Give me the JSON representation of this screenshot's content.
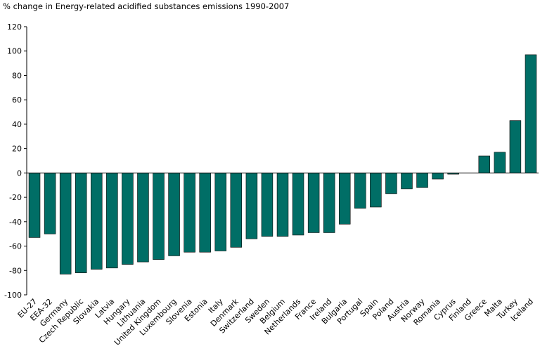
{
  "chart_data": {
    "type": "bar",
    "title": "% change in Energy-related acidified substances emissions 1990-2007",
    "xlabel": "",
    "ylabel": "",
    "ylim": [
      -100,
      120
    ],
    "yticks": [
      120,
      100,
      80,
      60,
      40,
      20,
      0,
      -20,
      -40,
      -60,
      -80,
      -100
    ],
    "grid": false,
    "bar_color": "#006e66",
    "categories": [
      "EU-27",
      "EEA-32",
      "Germany",
      "Czech Republic",
      "Slovakia",
      "Latvia",
      "Hungary",
      "Lithuania",
      "United Kingdom",
      "Luxembourg",
      "Slovenia",
      "Estonia",
      "Italy",
      "Denmark",
      "Switzerland",
      "Sweden",
      "Belgium",
      "Netherlands",
      "France",
      "Ireland",
      "Bulgaria",
      "Portugal",
      "Spain",
      "Poland",
      "Austria",
      "Norway",
      "Romania",
      "Cyprus",
      "Finland",
      "Greece",
      "Malta",
      "Turkey",
      "Iceland"
    ],
    "values": [
      -53,
      -50,
      -83,
      -82,
      -79,
      -78,
      -75,
      -73,
      -71,
      -68,
      -65,
      -65,
      -64,
      -61,
      -54,
      -52,
      -52,
      -51,
      -49,
      -49,
      -42,
      -29,
      -28,
      -17,
      -13,
      -12,
      -5,
      -1,
      0,
      14,
      17,
      43,
      97
    ]
  }
}
